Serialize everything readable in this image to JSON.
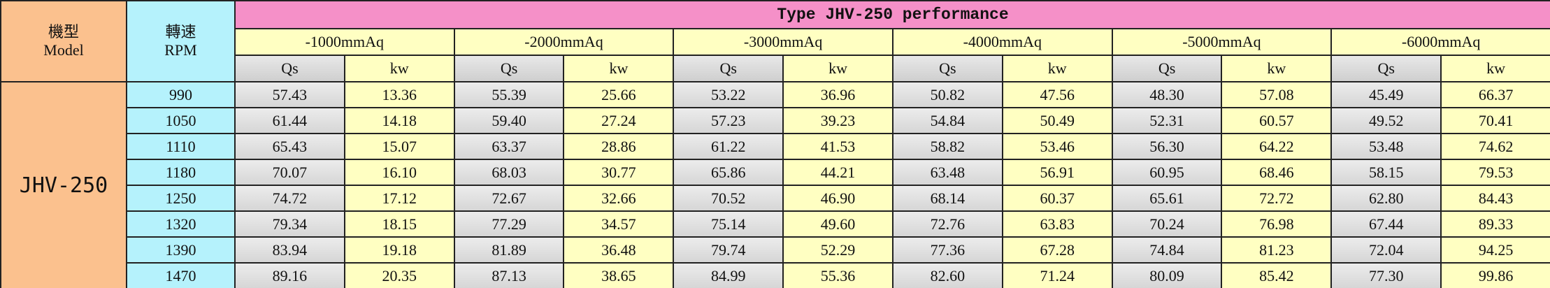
{
  "header": {
    "model": [
      "機型",
      "Model"
    ],
    "rpm": [
      "轉速",
      "RPM"
    ],
    "title": "Type JHV-250 performance",
    "pressures": [
      "-1000mmAq",
      "-2000mmAq",
      "-3000mmAq",
      "-4000mmAq",
      "-5000mmAq",
      "-6000mmAq"
    ],
    "sub": [
      "Qs",
      "kw"
    ]
  },
  "table": {
    "model": "JHV-250",
    "rows": [
      {
        "rpm": "990",
        "values": [
          "57.43",
          "13.36",
          "55.39",
          "25.66",
          "53.22",
          "36.96",
          "50.82",
          "47.56",
          "48.30",
          "57.08",
          "45.49",
          "66.37"
        ]
      },
      {
        "rpm": "1050",
        "values": [
          "61.44",
          "14.18",
          "59.40",
          "27.24",
          "57.23",
          "39.23",
          "54.84",
          "50.49",
          "52.31",
          "60.57",
          "49.52",
          "70.41"
        ]
      },
      {
        "rpm": "1110",
        "values": [
          "65.43",
          "15.07",
          "63.37",
          "28.86",
          "61.22",
          "41.53",
          "58.82",
          "53.46",
          "56.30",
          "64.22",
          "53.48",
          "74.62"
        ]
      },
      {
        "rpm": "1180",
        "values": [
          "70.07",
          "16.10",
          "68.03",
          "30.77",
          "65.86",
          "44.21",
          "63.48",
          "56.91",
          "60.95",
          "68.46",
          "58.15",
          "79.53"
        ]
      },
      {
        "rpm": "1250",
        "values": [
          "74.72",
          "17.12",
          "72.67",
          "32.66",
          "70.52",
          "46.90",
          "68.14",
          "60.37",
          "65.61",
          "72.72",
          "62.80",
          "84.43"
        ]
      },
      {
        "rpm": "1320",
        "values": [
          "79.34",
          "18.15",
          "77.29",
          "34.57",
          "75.14",
          "49.60",
          "72.76",
          "63.83",
          "70.24",
          "76.98",
          "67.44",
          "89.33"
        ]
      },
      {
        "rpm": "1390",
        "values": [
          "83.94",
          "19.18",
          "81.89",
          "36.48",
          "79.74",
          "52.29",
          "77.36",
          "67.28",
          "74.84",
          "81.23",
          "72.04",
          "94.25"
        ]
      },
      {
        "rpm": "1470",
        "values": [
          "89.16",
          "20.35",
          "87.13",
          "38.65",
          "84.99",
          "55.36",
          "82.60",
          "71.24",
          "80.09",
          "85.42",
          "77.30",
          "99.86"
        ]
      }
    ]
  }
}
